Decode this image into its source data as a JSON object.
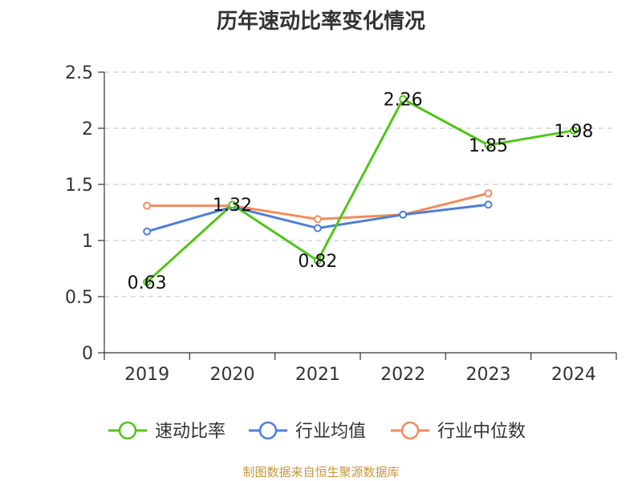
{
  "chart_data": {
    "type": "line",
    "title": "历年速动比率变化情况",
    "categories": [
      "2019",
      "2020",
      "2021",
      "2022",
      "2023",
      "2024"
    ],
    "ylim": [
      0,
      2.5
    ],
    "yticks": [
      "0",
      "0.5",
      "1",
      "1.5",
      "2",
      "2.5"
    ],
    "grid": true,
    "legend_position": "bottom",
    "series": [
      {
        "name": "速动比率",
        "color": "#52c41a",
        "values": [
          0.63,
          1.32,
          0.82,
          2.26,
          1.85,
          1.98
        ],
        "labels": [
          "0.63",
          "1.32",
          "0.82",
          "2.26",
          "1.85",
          "1.98"
        ],
        "show_labels": true
      },
      {
        "name": "行业均值",
        "color": "#4e7fd6",
        "values": [
          1.08,
          1.3,
          1.11,
          1.23,
          1.32,
          null
        ],
        "show_labels": false
      },
      {
        "name": "行业中位数",
        "color": "#f28c5c",
        "values": [
          1.31,
          1.31,
          1.19,
          1.23,
          1.42,
          null
        ],
        "show_labels": false
      }
    ]
  },
  "source": "制图数据来自恒生聚源数据库"
}
